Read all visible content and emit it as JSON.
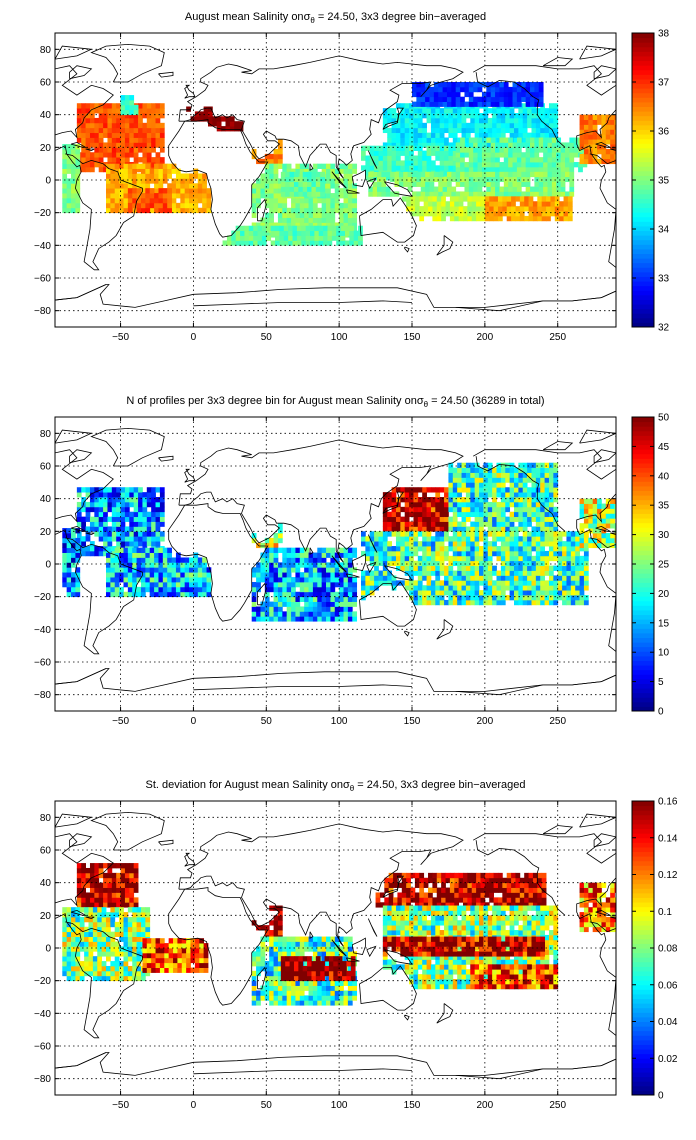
{
  "chart_data": [
    {
      "type": "heatmap",
      "title": "August mean Salinity onσθ = 24.50, 3x3 degree bin−averaged",
      "title_parts": {
        "pre": "August mean Salinity on",
        "sym": "σ",
        "sub": "θ",
        "post": " = 24.50, 3x3 degree bin−averaged"
      },
      "xlim": [
        -95,
        290
      ],
      "ylim": [
        -90,
        90
      ],
      "xticks": [
        -50,
        0,
        50,
        100,
        150,
        200,
        250
      ],
      "xtick_labels": [
        "−50",
        "0",
        "50",
        "100",
        "150",
        "200",
        "250"
      ],
      "yticks": [
        -80,
        -60,
        -40,
        -20,
        0,
        20,
        40,
        60,
        80
      ],
      "ytick_labels": [
        "−80",
        "−60",
        "−40",
        "−20",
        "0",
        "20",
        "40",
        "60",
        "80"
      ],
      "grid": true,
      "colormap": "jet",
      "clim": [
        32,
        38
      ],
      "colorbar_ticks": [
        32,
        33,
        34,
        35,
        36,
        37,
        38
      ],
      "colorbar_labels": [
        "32",
        "33",
        "34",
        "35",
        "36",
        "37",
        "38"
      ],
      "regions": [
        {
          "lon": [
            -80,
            -20
          ],
          "lat": [
            5,
            45
          ],
          "value": 36.8
        },
        {
          "lon": [
            -60,
            10
          ],
          "lat": [
            -20,
            8
          ],
          "value": 36.2
        },
        {
          "lon": [
            -45,
            -15
          ],
          "lat": [
            -20,
            -5
          ],
          "value": 36.8
        },
        {
          "lon": [
            -90,
            -80
          ],
          "lat": [
            -20,
            20
          ],
          "value": 35.0
        },
        {
          "lon": [
            -50,
            -40
          ],
          "lat": [
            40,
            50
          ],
          "value": 34.5
        },
        {
          "lon": [
            -5,
            35
          ],
          "lat": [
            30,
            45
          ],
          "value": 38.0
        },
        {
          "lon": [
            40,
            60
          ],
          "lat": [
            10,
            25
          ],
          "value": 36.5
        },
        {
          "lon": [
            40,
            110
          ],
          "lat": [
            -35,
            10
          ],
          "value": 35.0
        },
        {
          "lon": [
            20,
            115
          ],
          "lat": [
            -40,
            -30
          ],
          "value": 34.8
        },
        {
          "lon": [
            60,
            90
          ],
          "lat": [
            -10,
            5
          ],
          "value": 34.8
        },
        {
          "lon": [
            130,
            250
          ],
          "lat": [
            20,
            45
          ],
          "value": 34.2
        },
        {
          "lon": [
            150,
            240
          ],
          "lat": [
            45,
            60
          ],
          "value": 33.0
        },
        {
          "lon": [
            115,
            180
          ],
          "lat": [
            0,
            20
          ],
          "value": 34.6
        },
        {
          "lon": [
            180,
            270
          ],
          "lat": [
            5,
            25
          ],
          "value": 34.8
        },
        {
          "lon": [
            120,
            260
          ],
          "lat": [
            -10,
            5
          ],
          "value": 35.0
        },
        {
          "lon": [
            140,
            200
          ],
          "lat": [
            -25,
            -10
          ],
          "value": 35.4
        },
        {
          "lon": [
            200,
            260
          ],
          "lat": [
            -25,
            -10
          ],
          "value": 36.3
        },
        {
          "lon": [
            265,
            290
          ],
          "lat": [
            10,
            40
          ],
          "value": 36.5
        }
      ]
    },
    {
      "type": "heatmap",
      "title": "N of profiles per 3x3 degree bin for August mean Salinity onσθ = 24.50 (36289 in total)",
      "title_parts": {
        "pre": "N of profiles per 3x3 degree bin for August mean Salinity on",
        "sym": "σ",
        "sub": "θ",
        "post": " = 24.50 (36289 in total)"
      },
      "xlim": [
        -95,
        290
      ],
      "ylim": [
        -90,
        90
      ],
      "xticks": [
        -50,
        0,
        50,
        100,
        150,
        200,
        250
      ],
      "xtick_labels": [
        "−50",
        "0",
        "50",
        "100",
        "150",
        "200",
        "250"
      ],
      "yticks": [
        -80,
        -60,
        -40,
        -20,
        0,
        20,
        40,
        60,
        80
      ],
      "ytick_labels": [
        "−80",
        "−60",
        "−40",
        "−20",
        "0",
        "20",
        "40",
        "60",
        "80"
      ],
      "grid": true,
      "colormap": "jet",
      "clim": [
        0,
        50
      ],
      "colorbar_ticks": [
        0,
        5,
        10,
        15,
        20,
        25,
        30,
        35,
        40,
        45,
        50
      ],
      "colorbar_labels": [
        "0",
        "5",
        "10",
        "15",
        "20",
        "25",
        "30",
        "35",
        "40",
        "45",
        "50"
      ],
      "regions": [
        {
          "lon": [
            -80,
            -20
          ],
          "lat": [
            5,
            45
          ],
          "value": 14
        },
        {
          "lon": [
            -60,
            10
          ],
          "lat": [
            -20,
            8
          ],
          "value": 16
        },
        {
          "lon": [
            -90,
            -80
          ],
          "lat": [
            -20,
            20
          ],
          "value": 12
        },
        {
          "lon": [
            40,
            60
          ],
          "lat": [
            10,
            25
          ],
          "value": 30
        },
        {
          "lon": [
            40,
            110
          ],
          "lat": [
            -35,
            10
          ],
          "value": 15
        },
        {
          "lon": [
            130,
            175
          ],
          "lat": [
            20,
            45
          ],
          "value": 47
        },
        {
          "lon": [
            175,
            250
          ],
          "lat": [
            20,
            60
          ],
          "value": 22
        },
        {
          "lon": [
            115,
            270
          ],
          "lat": [
            -25,
            20
          ],
          "value": 22
        },
        {
          "lon": [
            265,
            290
          ],
          "lat": [
            10,
            40
          ],
          "value": 28
        }
      ]
    },
    {
      "type": "heatmap",
      "title": "St. deviation for August mean Salinity onσθ = 24.50, 3x3 degree bin−averaged",
      "title_parts": {
        "pre": "St. deviation for August mean Salinity on",
        "sym": "σ",
        "sub": "θ",
        "post": " = 24.50, 3x3 degree bin−averaged"
      },
      "xlim": [
        -95,
        290
      ],
      "ylim": [
        -90,
        90
      ],
      "xticks": [
        -50,
        0,
        50,
        100,
        150,
        200,
        250
      ],
      "xtick_labels": [
        "−50",
        "0",
        "50",
        "100",
        "150",
        "200",
        "250"
      ],
      "yticks": [
        -80,
        -60,
        -40,
        -20,
        0,
        20,
        40,
        60,
        80
      ],
      "ytick_labels": [
        "−80",
        "−60",
        "−40",
        "−20",
        "0",
        "20",
        "40",
        "60",
        "80"
      ],
      "grid": true,
      "colormap": "jet",
      "clim": [
        0,
        0.16
      ],
      "colorbar_ticks": [
        0,
        0.02,
        0.04,
        0.06,
        0.08,
        0.1,
        0.12,
        0.14,
        0.16
      ],
      "colorbar_labels": [
        "0",
        "0.02",
        "0.04",
        "0.06",
        "0.08",
        "0.1",
        "0.12",
        "0.14",
        "0.16"
      ],
      "regions": [
        {
          "lon": [
            -80,
            -40
          ],
          "lat": [
            25,
            50
          ],
          "value": 0.15
        },
        {
          "lon": [
            -90,
            -30
          ],
          "lat": [
            -20,
            25
          ],
          "value": 0.08
        },
        {
          "lon": [
            -35,
            10
          ],
          "lat": [
            -15,
            5
          ],
          "value": 0.13
        },
        {
          "lon": [
            40,
            60
          ],
          "lat": [
            5,
            25
          ],
          "value": 0.16
        },
        {
          "lon": [
            40,
            110
          ],
          "lat": [
            -35,
            5
          ],
          "value": 0.07
        },
        {
          "lon": [
            60,
            110
          ],
          "lat": [
            -20,
            -5
          ],
          "value": 0.16
        },
        {
          "lon": [
            125,
            240
          ],
          "lat": [
            25,
            45
          ],
          "value": 0.15
        },
        {
          "lon": [
            130,
            250
          ],
          "lat": [
            -25,
            25
          ],
          "value": 0.08
        },
        {
          "lon": [
            130,
            240
          ],
          "lat": [
            -5,
            5
          ],
          "value": 0.15
        },
        {
          "lon": [
            190,
            250
          ],
          "lat": [
            -25,
            -10
          ],
          "value": 0.13
        },
        {
          "lon": [
            265,
            290
          ],
          "lat": [
            10,
            40
          ],
          "value": 0.12
        }
      ]
    }
  ]
}
